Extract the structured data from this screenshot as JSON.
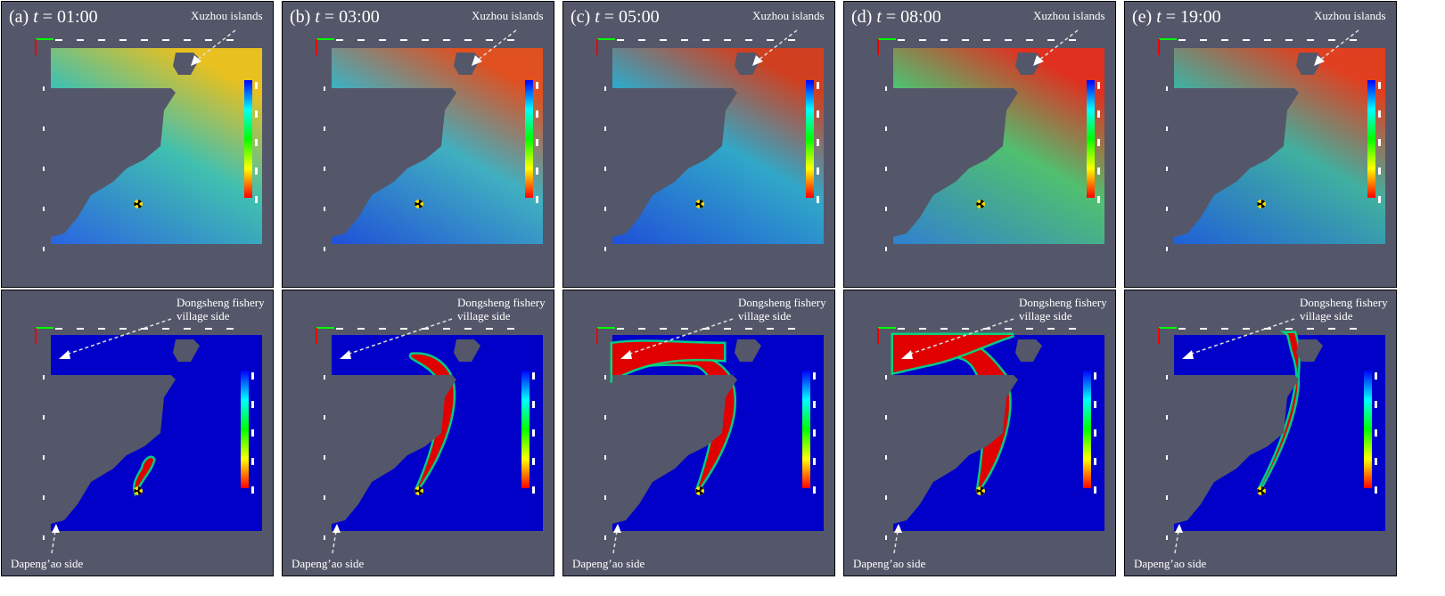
{
  "panels": [
    {
      "label": "(a)",
      "time": "01:00"
    },
    {
      "label": "(b)",
      "time": "03:00"
    },
    {
      "label": "(c)",
      "time": "05:00"
    },
    {
      "label": "(d)",
      "time": "08:00"
    },
    {
      "label": "(e)",
      "time": "19:00"
    }
  ],
  "time_symbol": "t",
  "annotations": {
    "top": "Xuzhou islands",
    "bottom_north_line1": "Dongsheng fishery",
    "bottom_north_line2": "village side",
    "bottom_south": "Dapeng’ao side"
  },
  "colors": {
    "background": "#545769",
    "water_low": "#0000c8",
    "plume": "#e00000",
    "land": "#545769"
  },
  "source_icon": "radiation-trefoil-icon"
}
